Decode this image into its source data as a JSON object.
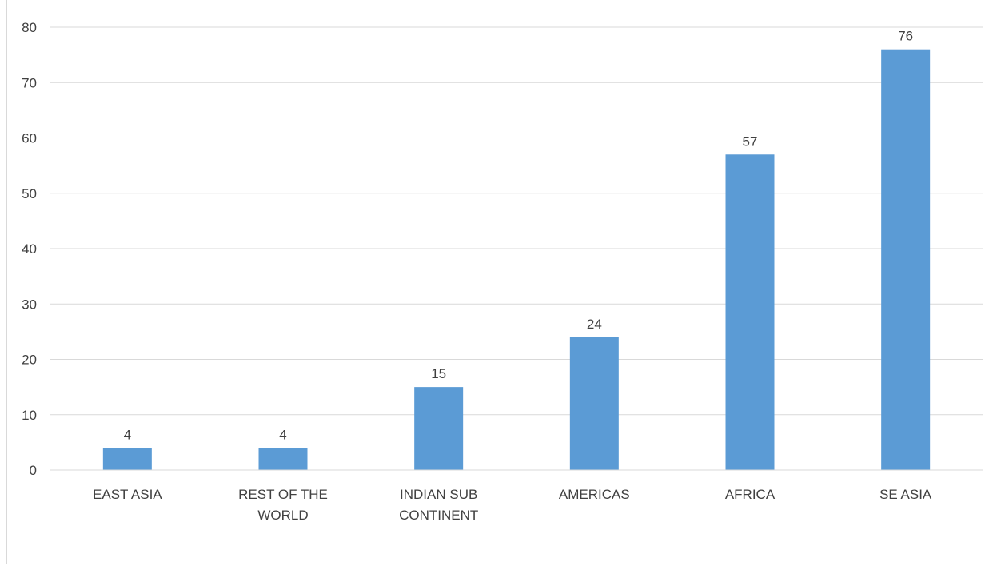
{
  "chart_data": {
    "type": "bar",
    "categories": [
      "EAST ASIA",
      "REST OF THE WORLD",
      "INDIAN SUB CONTINENT",
      "AMERICAS",
      "AFRICA",
      "SE ASIA"
    ],
    "category_lines": [
      [
        "EAST ASIA"
      ],
      [
        "REST OF THE",
        "WORLD"
      ],
      [
        "INDIAN SUB",
        "CONTINENT"
      ],
      [
        "AMERICAS"
      ],
      [
        "AFRICA"
      ],
      [
        "SE ASIA"
      ]
    ],
    "values": [
      4,
      4,
      15,
      24,
      57,
      76
    ],
    "data_labels": [
      "4",
      "4",
      "15",
      "24",
      "57",
      "76"
    ],
    "title": "",
    "xlabel": "",
    "ylabel": "",
    "ylim": [
      0,
      80
    ],
    "yticks": [
      "0",
      "10",
      "20",
      "30",
      "40",
      "50",
      "60",
      "70",
      "80"
    ],
    "grid": true,
    "legend": "none",
    "colors": {
      "bar": "#5b9bd5",
      "grid": "#d9d9d9",
      "text": "#404040",
      "axis": "#d9d9d9"
    }
  }
}
